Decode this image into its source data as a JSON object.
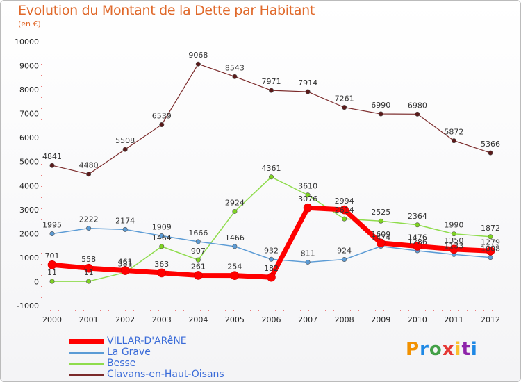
{
  "title": "Evolution du Montant de la Dette par Habitant",
  "unit": "(en €)",
  "logo": "Proxiti",
  "chart_data": {
    "type": "line",
    "title": "Evolution du Montant de la Dette par Habitant",
    "ylabel": "(en €)",
    "x": [
      "2000",
      "2001",
      "2002",
      "2003",
      "2004",
      "2005",
      "2006",
      "2007",
      "2008",
      "2009",
      "2010",
      "2011",
      "2012"
    ],
    "ylim": [
      -1000,
      10000
    ],
    "yticks": [
      -1000,
      0,
      1000,
      2000,
      3000,
      4000,
      5000,
      6000,
      7000,
      8000,
      9000,
      10000
    ],
    "grid": false,
    "legend": "bottom-left",
    "series": [
      {
        "name": "VILLAR-D'ARêNE",
        "color": "#ff0000",
        "width": 7,
        "marker": "#ff0000",
        "values": [
          701,
          558,
          461,
          363,
          261,
          254,
          182,
          3076,
          2994,
          1609,
          1476,
          1350,
          1279
        ],
        "labels": [
          "701",
          "558",
          "461",
          "363",
          "261",
          "254",
          "182",
          "3076",
          "2994",
          "1609",
          "1476",
          "1350",
          "1279"
        ]
      },
      {
        "name": "La Grave",
        "color": "#5b9bd5",
        "width": 1.5,
        "marker": "#5b9bd5",
        "values": [
          1995,
          2222,
          2174,
          1909,
          1666,
          1466,
          932,
          811,
          924,
          1474,
          1286,
          1133,
          1008
        ],
        "labels": [
          "1995",
          "2222",
          "2174",
          "1909",
          "1666",
          "1466",
          "932",
          "811",
          "924",
          "1474",
          "1286",
          "1133",
          "1008"
        ]
      },
      {
        "name": "Besse",
        "color": "#8fdc4c",
        "width": 1.5,
        "marker": "#7ed321",
        "values": [
          11,
          11,
          381,
          1464,
          907,
          2924,
          4361,
          3610,
          2614,
          2525,
          2364,
          1990,
          1872
        ],
        "labels": [
          "11",
          "11",
          "381",
          "1464",
          "907",
          "2924",
          "4361",
          "3610",
          "2614",
          "2525",
          "2364",
          "1990",
          "1872"
        ]
      },
      {
        "name": "Clavans-en-Haut-Oisans",
        "color": "#7b2a2a",
        "width": 1.2,
        "marker": "#5a1a1a",
        "values": [
          4841,
          4480,
          5508,
          6539,
          9068,
          8543,
          7971,
          7914,
          7261,
          6990,
          6980,
          5872,
          5366
        ],
        "labels": [
          "4841",
          "4480",
          "5508",
          "6539",
          "9068",
          "8543",
          "7971",
          "7914",
          "7261",
          "6990",
          "6980",
          "5872",
          "5366"
        ]
      }
    ]
  }
}
